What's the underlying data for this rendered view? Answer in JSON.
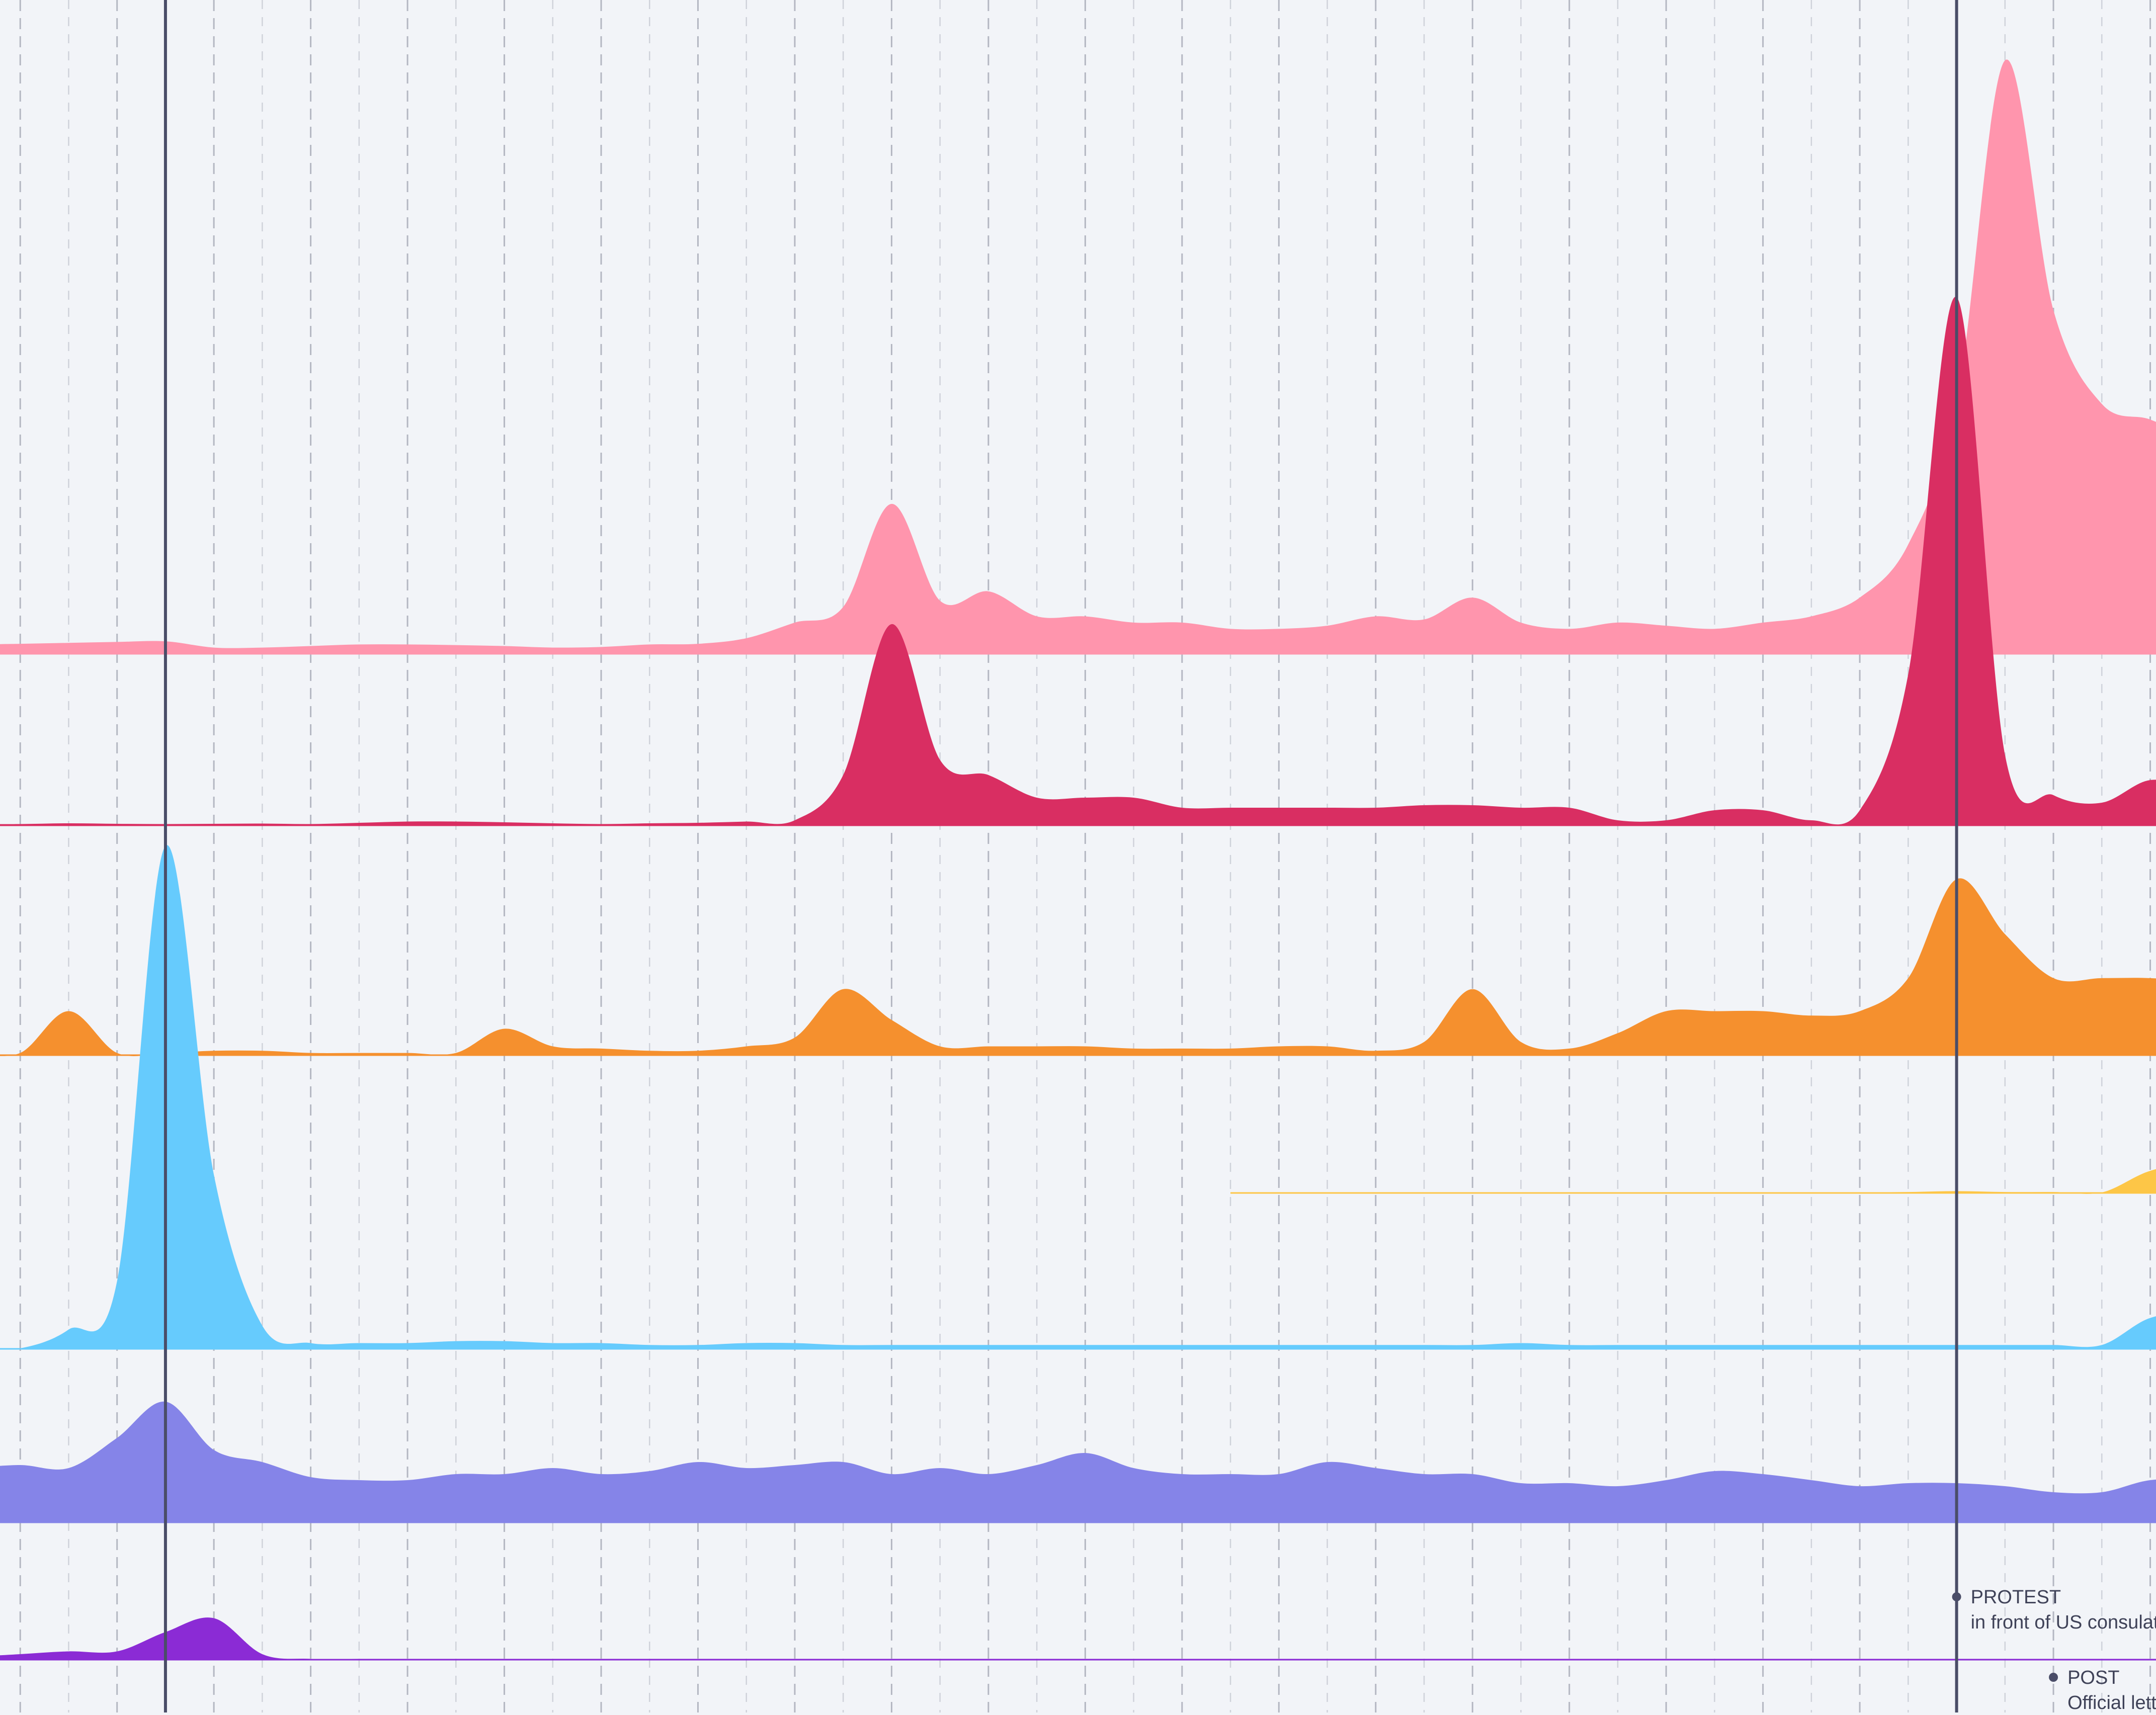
{
  "chart_data": {
    "type": "area",
    "subtype": "ridgeline",
    "x": [
      0,
      1,
      2,
      3,
      4,
      5,
      6,
      7,
      8,
      9,
      10,
      11,
      12,
      13,
      14,
      15,
      16,
      17,
      18,
      19,
      20,
      21,
      22,
      23,
      24,
      25,
      26,
      27,
      28,
      29,
      30,
      31,
      32,
      33,
      34,
      35,
      36,
      37,
      38,
      39,
      40,
      41,
      42,
      43,
      44,
      45,
      46,
      47
    ],
    "xlim": [
      0,
      47
    ],
    "grid": {
      "vertical_dashed": true,
      "major_every": 2
    },
    "series": [
      {
        "color": "#ff95ad",
        "values": [
          3,
          3.2,
          3.5,
          3.8,
          4,
          2,
          2,
          2.5,
          3,
          3,
          2.8,
          2.5,
          2,
          2.2,
          3,
          3.2,
          5,
          10,
          15,
          48,
          17,
          20,
          12,
          12,
          10,
          10,
          8,
          8,
          9,
          12,
          11,
          18,
          10,
          8,
          10,
          9,
          8,
          10,
          12,
          18,
          35,
          80,
          190,
          110,
          80,
          75,
          68,
          60
        ],
        "vmax": 190
      },
      {
        "color": "#d92e62",
        "values": [
          0.5,
          0.5,
          0.8,
          0.6,
          0.5,
          0.6,
          0.7,
          0.5,
          1,
          1.5,
          1.5,
          1.2,
          0.8,
          0.5,
          0.8,
          1,
          1.5,
          2,
          20,
          80,
          26,
          20,
          11,
          11,
          11,
          7,
          7,
          7,
          7,
          7,
          8,
          8,
          7,
          7,
          2,
          2,
          6,
          6,
          2,
          6,
          60,
          210,
          28,
          12,
          9,
          18,
          14,
          8
        ],
        "vmax": 210
      },
      {
        "color": "#f5902e",
        "values": [
          1,
          1,
          20,
          1,
          1,
          2,
          2,
          1,
          1,
          1,
          1,
          12,
          4,
          3,
          2,
          2,
          4,
          8,
          30,
          16,
          4,
          4,
          4,
          4,
          3,
          3,
          3,
          4,
          4,
          2,
          6,
          30,
          6,
          3,
          10,
          20,
          20,
          20,
          18,
          20,
          35,
          80,
          55,
          35,
          35,
          35,
          33,
          25
        ],
        "vmax": 80
      },
      {
        "color": "#fdc647",
        "values": [
          null,
          null,
          null,
          null,
          null,
          null,
          null,
          null,
          null,
          null,
          null,
          null,
          null,
          null,
          null,
          null,
          null,
          null,
          null,
          null,
          null,
          null,
          null,
          null,
          null,
          null,
          0.2,
          0.2,
          0.2,
          0.2,
          0.2,
          0.2,
          0.2,
          0.2,
          0.2,
          0.2,
          0.2,
          0.2,
          0.3,
          0.3,
          0.5,
          1,
          0.5,
          0.5,
          0.3,
          12,
          16,
          8
        ],
        "vmax": 60
      },
      {
        "color": "#66cbfd",
        "values": [
          0.5,
          0.3,
          10,
          35,
          260,
          90,
          12,
          3,
          3,
          3,
          4,
          4,
          3,
          3,
          2,
          2,
          3,
          3,
          2,
          2,
          2,
          2,
          2,
          2,
          2,
          2,
          2,
          2,
          2,
          2,
          2,
          2,
          3,
          2,
          2,
          2,
          2,
          2,
          2,
          2,
          2,
          2,
          2,
          2,
          2,
          16,
          18,
          8
        ],
        "vmax": 260
      },
      {
        "color": "#8584e8",
        "values": [
          18,
          19,
          18,
          28,
          40,
          24,
          20,
          15,
          14,
          14,
          16,
          16,
          18,
          16,
          17,
          20,
          18,
          19,
          20,
          16,
          18,
          16,
          19,
          23,
          18,
          16,
          16,
          16,
          20,
          18,
          16,
          16,
          13,
          13,
          12,
          14,
          17,
          16,
          14,
          12,
          13,
          13,
          12,
          10,
          10,
          14,
          14,
          12
        ],
        "vmax": 60
      },
      {
        "color": "#8b2bd5",
        "values": [
          1,
          2,
          3,
          3,
          10,
          15,
          2,
          0.3,
          0.3,
          0.3,
          0.3,
          0.3,
          0.3,
          0.3,
          0.3,
          0.3,
          0.3,
          0.3,
          0.3,
          0.3,
          0.3,
          0.3,
          0.3,
          0.3,
          0.3,
          0.3,
          0.3,
          0.3,
          0.3,
          0.3,
          0.3,
          0.3,
          0.3,
          0.3,
          0.3,
          0.3,
          0.3,
          0.3,
          0.3,
          0.3,
          0.3,
          0.3,
          0.3,
          0.3,
          0.3,
          0.3,
          0.3,
          0.3
        ],
        "vmax": 60
      }
    ],
    "events": [
      {
        "x": 4,
        "label": "",
        "description": ""
      },
      {
        "x": 41,
        "label": "PROTEST",
        "description": "in front of US consulate in the Ka"
      },
      {
        "x": 43,
        "label": "POST",
        "description": "Official letter to @Pr"
      }
    ]
  }
}
